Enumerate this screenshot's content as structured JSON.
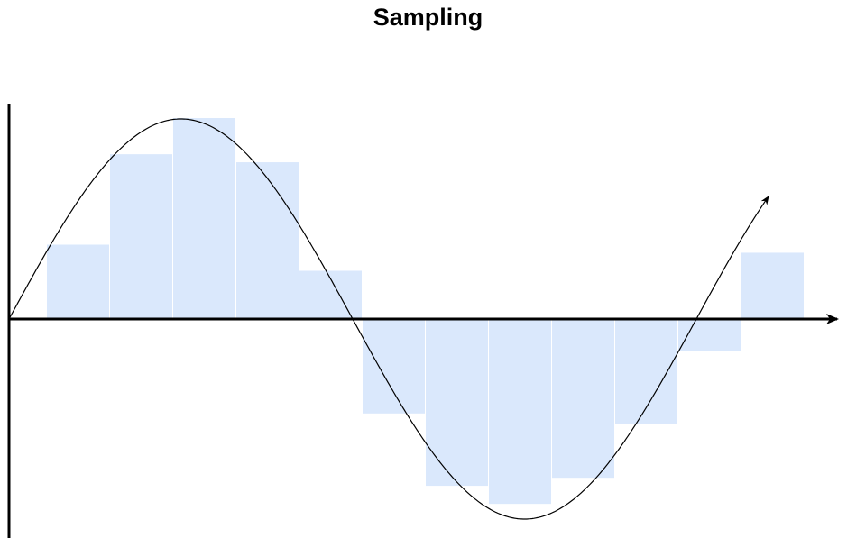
{
  "title": "Sampling",
  "colors": {
    "bar_fill": "#dae8fc",
    "curve": "#000000",
    "axis": "#000000",
    "background": "#ffffff"
  },
  "chart_data": {
    "type": "bar",
    "description_elements": [
      "sine-curve",
      "x-axis-arrow",
      "y-axis"
    ],
    "sample_values": [
      0.37,
      0.82,
      1.0,
      0.78,
      0.24,
      -0.47,
      -0.83,
      -0.92,
      -0.79,
      -0.52,
      -0.16,
      0.33
    ]
  }
}
